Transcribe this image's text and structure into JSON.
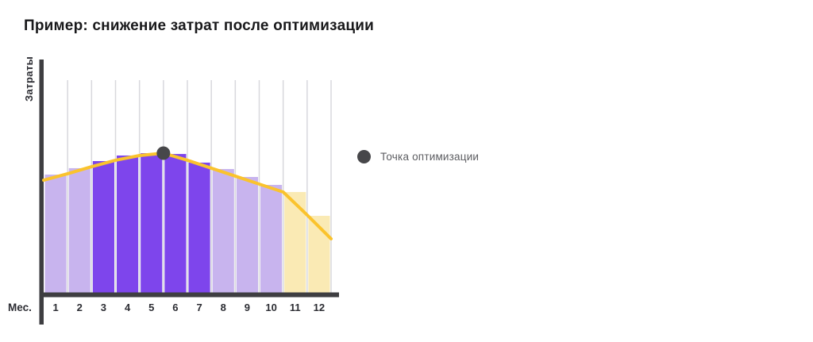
{
  "title": "Пример: снижение затрат после оптимизации",
  "y_axis_label": "Затраты",
  "x_axis_label": "Мес.",
  "legend": {
    "label": "Точка оптимизации"
  },
  "chart_data": {
    "type": "bar",
    "title": "Пример: снижение затрат после оптимизации",
    "xlabel": "Мес.",
    "ylabel": "Затраты",
    "categories": [
      "1",
      "2",
      "3",
      "4",
      "5",
      "6",
      "7",
      "8",
      "9",
      "10",
      "11",
      "12"
    ],
    "values": [
      84.6,
      89.2,
      94.3,
      98.3,
      100,
      99.4,
      93.2,
      88.6,
      82.9,
      77.2,
      72.1,
      55.0
    ],
    "bar_color_keys": [
      "light",
      "light",
      "dark",
      "dark",
      "dark",
      "dark",
      "dark",
      "light",
      "light",
      "light",
      "cream",
      "cream"
    ],
    "line_overlay": {
      "x": [
        0,
        1,
        2,
        3,
        4,
        5,
        6,
        7,
        8,
        9,
        10,
        11,
        12
      ],
      "y": [
        80.6,
        85.2,
        90.3,
        94.9,
        98.3,
        100,
        94.9,
        89.2,
        83.5,
        77.8,
        72.1,
        55.6,
        38.5
      ]
    },
    "annotation_point": {
      "x": 5,
      "y": 100,
      "label": "Точка оптимизации"
    },
    "ylim": [
      0,
      115
    ],
    "grid": "vertical",
    "legend_position": "right",
    "y_ticks": "none (relative scale, 100 = peak)"
  },
  "colors": {
    "bar_light": "#c8b4ee",
    "bar_dark": "#7e45ec",
    "bar_cream": "#faeab4",
    "line": "#fac32d",
    "dot": "#47474a",
    "axis": "#3e3e41",
    "gridline": "#d8d8dd",
    "title_text": "#19191b",
    "axis_text": "#2c2d33",
    "legend_text": "#5c5d61"
  }
}
